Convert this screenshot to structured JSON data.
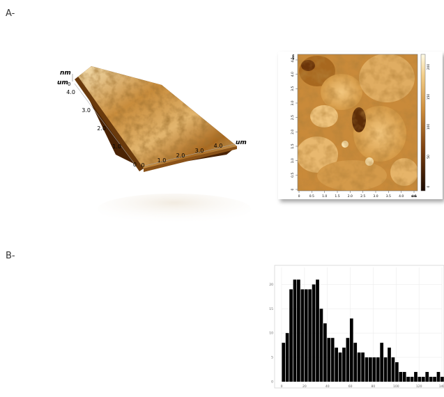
{
  "panels": {
    "a_label": "A-",
    "b_label": "B-"
  },
  "surface3d": {
    "z_unit": "nm",
    "y_unit": "um",
    "x_unit": "um",
    "z_tick": "0",
    "x_ticks": [
      "0",
      "1.0",
      "2.0",
      "3.0",
      "4.0"
    ],
    "y_ticks": [
      "0",
      "1.0",
      "2.0",
      "3.0",
      "4.0"
    ],
    "colors": {
      "dark": "#5a2a06",
      "mid": "#b07228",
      "light": "#e7c382",
      "highlight": "#f6e3b6"
    }
  },
  "afm_image": {
    "x_unit": "um",
    "y_unit": "um",
    "x_ticks": [
      "0",
      "0.5",
      "1.0",
      "1.5",
      "2.0",
      "2.5",
      "3.0",
      "3.5",
      "4.0",
      "4.5"
    ],
    "y_ticks": [
      "0",
      "0.5",
      "1.0",
      "1.5",
      "2.0",
      "2.5",
      "3.0",
      "3.5",
      "4.0",
      "4.5"
    ],
    "colorbar_ticks": [
      "0",
      "50",
      "100",
      "150",
      "200"
    ]
  },
  "chart_data": {
    "type": "bar",
    "title": "",
    "xlabel": "",
    "ylabel": "",
    "x_ticks": [
      "0",
      "20",
      "40",
      "60",
      "80",
      "100",
      "120",
      "140"
    ],
    "y_ticks": [
      "0",
      "5",
      "10",
      "15",
      "20"
    ],
    "xlim": [
      0,
      140
    ],
    "ylim": [
      0,
      23.5
    ],
    "bin_width": 3.3,
    "grid": true,
    "bar_color": "#000000",
    "values": [
      8,
      10,
      19,
      21,
      21,
      19,
      19,
      19,
      20,
      21,
      15,
      12,
      9,
      9,
      7,
      6,
      7,
      9,
      13,
      8,
      6,
      6,
      5,
      5,
      5,
      5,
      8,
      5,
      7,
      5,
      4,
      2,
      2,
      1,
      1,
      2,
      1,
      1,
      2,
      1,
      1,
      2,
      1,
      1,
      2,
      1
    ]
  }
}
